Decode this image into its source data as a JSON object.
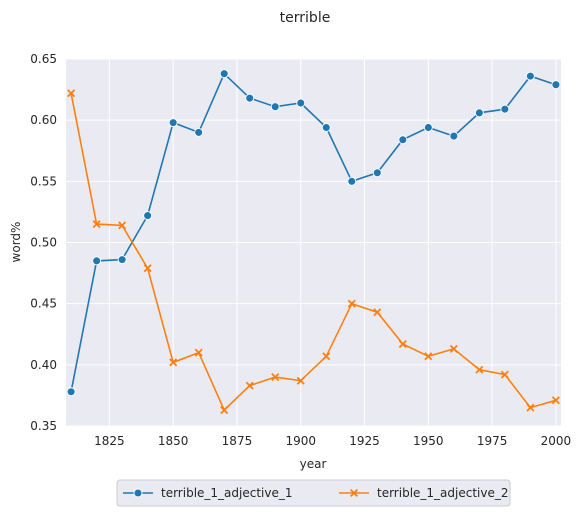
{
  "chart_data": {
    "type": "line",
    "title": "terrible",
    "xlabel": "year",
    "ylabel": "word%",
    "xlim": [
      1808,
      2002
    ],
    "ylim": [
      0.35,
      0.65
    ],
    "x_ticks": [
      1825,
      1850,
      1875,
      1900,
      1925,
      1950,
      1975,
      2000
    ],
    "y_ticks": [
      0.35,
      0.4,
      0.45,
      0.5,
      0.55,
      0.6,
      0.65
    ],
    "y_tick_labels": [
      "0.35",
      "0.40",
      "0.45",
      "0.50",
      "0.55",
      "0.60",
      "0.65"
    ],
    "grid": true,
    "legend_placement": "bottom-center, below axes",
    "x": [
      1810,
      1820,
      1830,
      1840,
      1850,
      1860,
      1870,
      1880,
      1890,
      1900,
      1910,
      1920,
      1930,
      1940,
      1950,
      1960,
      1970,
      1980,
      1990,
      2000
    ],
    "series": [
      {
        "name": "terrible_1_adjective_1",
        "color": "#1f77b4",
        "marker": "circle",
        "values": [
          0.378,
          0.485,
          0.486,
          0.522,
          0.598,
          0.59,
          0.638,
          0.618,
          0.611,
          0.614,
          0.594,
          0.55,
          0.557,
          0.584,
          0.594,
          0.587,
          0.606,
          0.609,
          0.636,
          0.629
        ]
      },
      {
        "name": "terrible_1_adjective_2",
        "color": "#ff7f0e",
        "marker": "x",
        "values": [
          0.622,
          0.515,
          0.514,
          0.479,
          0.402,
          0.41,
          0.363,
          0.383,
          0.39,
          0.387,
          0.407,
          0.45,
          0.443,
          0.417,
          0.407,
          0.413,
          0.396,
          0.392,
          0.365,
          0.371
        ]
      }
    ]
  }
}
